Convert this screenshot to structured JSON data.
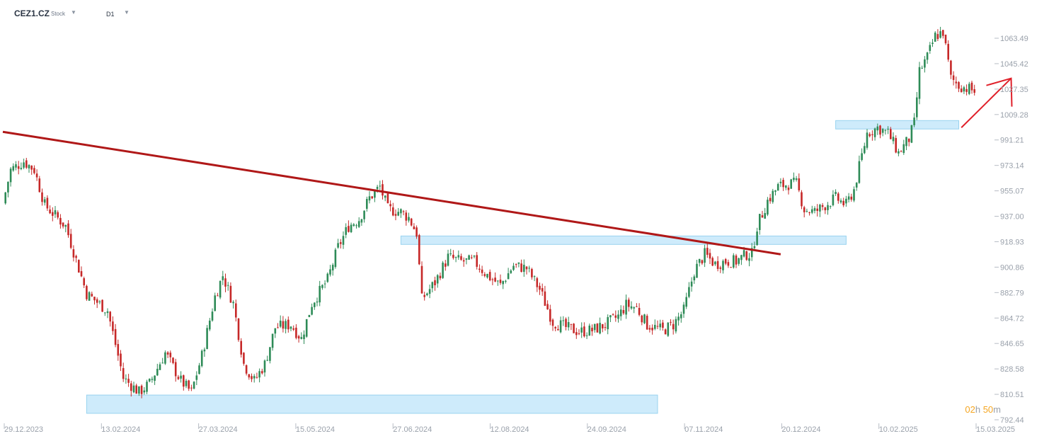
{
  "toolbar": {
    "symbol": "CEZ1.CZ",
    "instrument_type": "Stock",
    "symbol_dropdown_icon": "caret-down-icon",
    "timeframe": "D1",
    "timeframe_dropdown_icon": "caret-down-icon"
  },
  "countdown": {
    "h_value": "02",
    "h_unit": "h",
    "m_value": "50",
    "m_unit": "m"
  },
  "colors": {
    "up": "#2e8b57",
    "down": "#c62828",
    "trendline": "#b01818",
    "zone_fill": "#c9e9fb",
    "zone_stroke": "#8fcfee",
    "arrow": "#e0202a",
    "countdown": "#f5a623"
  },
  "chart_data": {
    "type": "candlestick",
    "title": "",
    "y_tick_labels": [
      "1063.49",
      "1045.42",
      "1027.35",
      "1009.28",
      "991.21",
      "973.14",
      "955.07",
      "937.00",
      "918.93",
      "900.86",
      "882.79",
      "864.72",
      "846.65",
      "828.58",
      "810.51",
      "792.44"
    ],
    "x_tick_labels": [
      "29.12.2023",
      "13.02.2024",
      "27.03.2024",
      "15.05.2024",
      "27.06.2024",
      "12.08.2024",
      "24.09.2024",
      "07.11.2024",
      "20.12.2024",
      "10.02.2025",
      "15.03.2025"
    ],
    "ylim": [
      792.44,
      1068
    ],
    "price_path": [
      [
        0,
        946
      ],
      [
        3,
        970
      ],
      [
        8,
        976
      ],
      [
        12,
        970
      ],
      [
        16,
        945
      ],
      [
        24,
        930
      ],
      [
        32,
        882
      ],
      [
        40,
        870
      ],
      [
        46,
        822
      ],
      [
        52,
        812
      ],
      [
        56,
        818
      ],
      [
        62,
        840
      ],
      [
        68,
        820
      ],
      [
        72,
        812
      ],
      [
        76,
        838
      ],
      [
        81,
        880
      ],
      [
        84,
        895
      ],
      [
        88,
        875
      ],
      [
        92,
        832
      ],
      [
        96,
        820
      ],
      [
        100,
        832
      ],
      [
        104,
        858
      ],
      [
        110,
        860
      ],
      [
        114,
        850
      ],
      [
        118,
        875
      ],
      [
        124,
        892
      ],
      [
        128,
        915
      ],
      [
        132,
        930
      ],
      [
        136,
        935
      ],
      [
        140,
        950
      ],
      [
        144,
        958
      ],
      [
        147,
        942
      ],
      [
        152,
        940
      ],
      [
        155,
        936
      ],
      [
        158,
        925
      ],
      [
        160,
        878
      ],
      [
        165,
        890
      ],
      [
        170,
        908
      ],
      [
        175,
        905
      ],
      [
        180,
        905
      ],
      [
        185,
        895
      ],
      [
        190,
        888
      ],
      [
        195,
        902
      ],
      [
        200,
        900
      ],
      [
        205,
        885
      ],
      [
        210,
        862
      ],
      [
        215,
        858
      ],
      [
        220,
        855
      ],
      [
        225,
        856
      ],
      [
        230,
        860
      ],
      [
        235,
        866
      ],
      [
        238,
        874
      ],
      [
        242,
        872
      ],
      [
        246,
        860
      ],
      [
        252,
        856
      ],
      [
        256,
        860
      ],
      [
        260,
        870
      ],
      [
        264,
        898
      ],
      [
        268,
        910
      ],
      [
        272,
        903
      ],
      [
        276,
        905
      ],
      [
        280,
        905
      ],
      [
        284,
        910
      ],
      [
        286,
        910
      ],
      [
        288,
        930
      ],
      [
        292,
        948
      ],
      [
        296,
        958
      ],
      [
        300,
        960
      ],
      [
        303,
        960
      ],
      [
        306,
        942
      ],
      [
        310,
        940
      ],
      [
        314,
        945
      ],
      [
        318,
        950
      ],
      [
        322,
        945
      ],
      [
        325,
        956
      ],
      [
        330,
        996
      ],
      [
        334,
        1000
      ],
      [
        338,
        996
      ],
      [
        342,
        982
      ],
      [
        346,
        992
      ],
      [
        348,
        1003
      ],
      [
        350,
        1040
      ],
      [
        353,
        1050
      ],
      [
        356,
        1065
      ],
      [
        359,
        1068
      ],
      [
        362,
        1035
      ],
      [
        365,
        1030
      ],
      [
        368,
        1028
      ],
      [
        371,
        1026
      ],
      [
        374,
        1008
      ],
      [
        376,
        1012
      ]
    ],
    "trendline": {
      "from": [
        0,
        997
      ],
      "to": [
        297,
        910
      ]
    },
    "support_zones": [
      {
        "from": 32,
        "to": 250,
        "low": 797,
        "high": 810
      },
      {
        "from": 152,
        "to": 322,
        "low": 917,
        "high": 923
      },
      {
        "from": 318,
        "to": 365,
        "low": 999,
        "high": 1005
      }
    ],
    "projection_arrow": {
      "from": [
        366,
        1000
      ],
      "to": [
        385,
        1035
      ]
    },
    "grid": false,
    "legend": "none"
  }
}
